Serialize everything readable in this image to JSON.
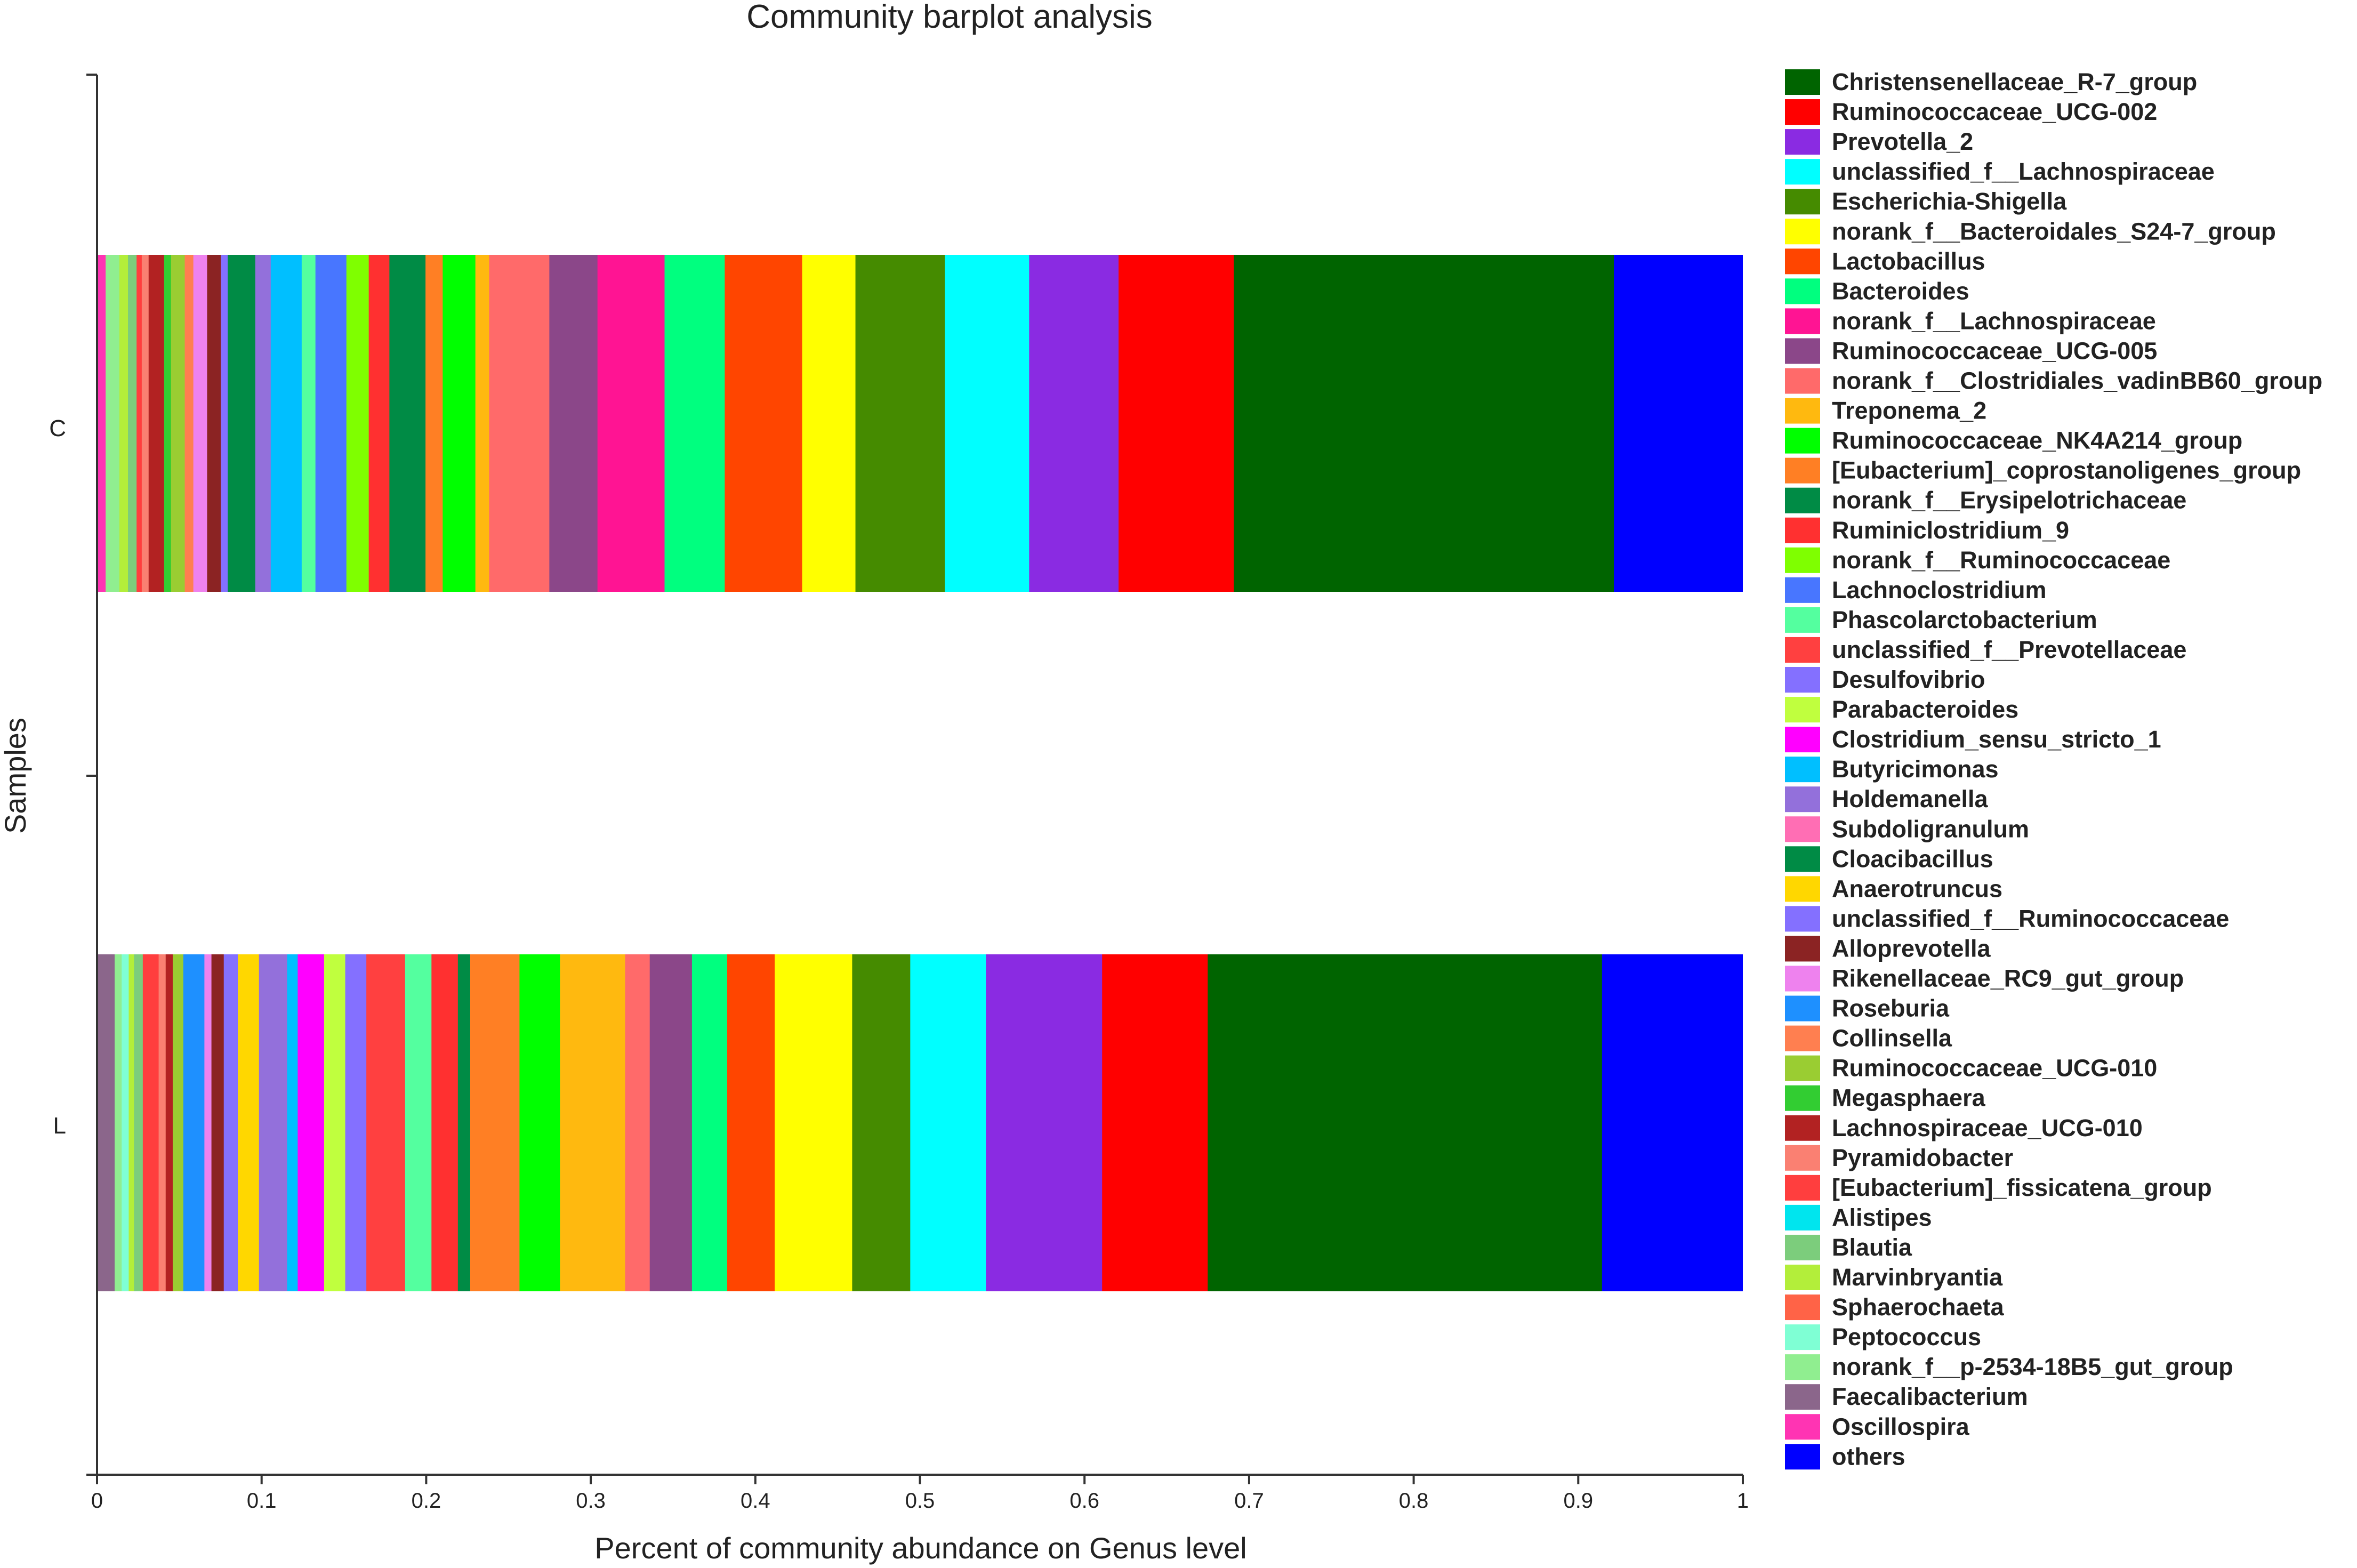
{
  "chart_data": {
    "type": "bar",
    "orientation": "horizontal",
    "stacked": true,
    "title": "Community barplot analysis",
    "xlabel": "Percent of community abundance on Genus level",
    "ylabel": "Samples",
    "xlim": [
      0,
      1
    ],
    "xticks": [
      "0",
      "0.1",
      "0.2",
      "0.3",
      "0.4",
      "0.5",
      "0.6",
      "0.7",
      "0.8",
      "0.9",
      "1"
    ],
    "categories": [
      "C",
      "L"
    ],
    "legend_position": "right",
    "series": [
      {
        "name": "Christensenellaceae_R-7_group",
        "color": "#006400",
        "values": [
          0.221,
          0.224
        ]
      },
      {
        "name": "Ruminococcaceae_UCG-002",
        "color": "#FF0000",
        "values": [
          0.067,
          0.06
        ]
      },
      {
        "name": "Prevotella_2",
        "color": "#8A2BE2",
        "values": [
          0.052,
          0.066
        ]
      },
      {
        "name": "unclassified_f__Lachnospiraceae",
        "color": "#00FFFF",
        "values": [
          0.049,
          0.043
        ]
      },
      {
        "name": "Escherichia-Shigella",
        "color": "#458B00",
        "values": [
          0.052,
          0.033
        ]
      },
      {
        "name": "norank_f__Bacteroidales_S24-7_group",
        "color": "#FFFF00",
        "values": [
          0.031,
          0.044
        ]
      },
      {
        "name": "Lactobacillus",
        "color": "#FF4500",
        "values": [
          0.045,
          0.027
        ]
      },
      {
        "name": "Bacteroides",
        "color": "#00FF7F",
        "values": [
          0.035,
          0.02
        ]
      },
      {
        "name": "norank_f__Lachnospiraceae",
        "color": "#FF1493",
        "values": [
          0.039,
          0.0
        ]
      },
      {
        "name": "Ruminococcaceae_UCG-005",
        "color": "#8B4789",
        "values": [
          0.028,
          0.024
        ]
      },
      {
        "name": "norank_f__Clostridiales_vadinBB60_group",
        "color": "#FF6A6A",
        "values": [
          0.035,
          0.014
        ]
      },
      {
        "name": "Treponema_2",
        "color": "#FFB90F",
        "values": [
          0.008,
          0.037
        ]
      },
      {
        "name": "Ruminococcaceae_NK4A214_group",
        "color": "#00FF00",
        "values": [
          0.019,
          0.023
        ]
      },
      {
        "name": "[Eubacterium]_coprostanoligenes_group",
        "color": "#FF7F24",
        "values": [
          0.01,
          0.028
        ]
      },
      {
        "name": "norank_f__Erysipelotrichaceae",
        "color": "#008B45",
        "values": [
          0.021,
          0.007
        ]
      },
      {
        "name": "Ruminiclostridium_9",
        "color": "#FF3030",
        "values": [
          0.012,
          0.015
        ]
      },
      {
        "name": "norank_f__Ruminococcaceae",
        "color": "#7FFF00",
        "values": [
          0.013,
          0.0
        ]
      },
      {
        "name": "Lachnoclostridium",
        "color": "#4876FF",
        "values": [
          0.018,
          0.0
        ]
      },
      {
        "name": "Phascolarctobacterium",
        "color": "#54FF9F",
        "values": [
          0.008,
          0.015
        ]
      },
      {
        "name": "unclassified_f__Prevotellaceae",
        "color": "#FF4040",
        "values": [
          0.0,
          0.022
        ]
      },
      {
        "name": "Desulfovibrio",
        "color": "#8470FF",
        "values": [
          0.0,
          0.012
        ]
      },
      {
        "name": "Parabacteroides",
        "color": "#C0FF3E",
        "values": [
          0.0,
          0.012
        ]
      },
      {
        "name": "Clostridium_sensu_stricto_1",
        "color": "#FF00FF",
        "values": [
          0.0,
          0.015
        ]
      },
      {
        "name": "Butyricimonas",
        "color": "#00BFFF",
        "values": [
          0.018,
          0.006
        ]
      },
      {
        "name": "Holdemanella",
        "color": "#9370DB",
        "values": [
          0.009,
          0.016
        ]
      },
      {
        "name": "Subdoligranulum",
        "color": "#FF6EB4",
        "values": [
          0.0,
          0.0
        ]
      },
      {
        "name": "Cloacibacillus",
        "color": "#008B45",
        "values": [
          0.016,
          0.0
        ]
      },
      {
        "name": "Anaerotruncus",
        "color": "#FFD700",
        "values": [
          0.0,
          0.012
        ]
      },
      {
        "name": "unclassified_f__Ruminococcaceae",
        "color": "#8470FF",
        "values": [
          0.004,
          0.008
        ]
      },
      {
        "name": "Alloprevotella",
        "color": "#8B2323",
        "values": [
          0.008,
          0.007
        ]
      },
      {
        "name": "Rikenellaceae_RC9_gut_group",
        "color": "#EE82EE",
        "values": [
          0.008,
          0.004
        ]
      },
      {
        "name": "Roseburia",
        "color": "#1E90FF",
        "values": [
          0.0,
          0.012
        ]
      },
      {
        "name": "Collinsella",
        "color": "#FF7F50",
        "values": [
          0.005,
          0.0
        ]
      },
      {
        "name": "Ruminococcaceae_UCG-010",
        "color": "#9ACD32",
        "values": [
          0.008,
          0.006
        ]
      },
      {
        "name": "Megasphaera",
        "color": "#32CD32",
        "values": [
          0.004,
          0.0
        ]
      },
      {
        "name": "Lachnospiraceae_UCG-010",
        "color": "#B22222",
        "values": [
          0.009,
          0.004
        ]
      },
      {
        "name": "Pyramidobacter",
        "color": "#FA8072",
        "values": [
          0.004,
          0.004
        ]
      },
      {
        "name": "[Eubacterium]_fissicatena_group",
        "color": "#FF3E3E",
        "values": [
          0.003,
          0.009
        ]
      },
      {
        "name": "Alistipes",
        "color": "#00E5EE",
        "values": [
          0.0,
          0.0
        ]
      },
      {
        "name": "Blautia",
        "color": "#7CCD7C",
        "values": [
          0.005,
          0.005
        ]
      },
      {
        "name": "Marvinbryantia",
        "color": "#B3EE3A",
        "values": [
          0.005,
          0.003
        ]
      },
      {
        "name": "Sphaerochaeta",
        "color": "#FF6347",
        "values": [
          0.0,
          0.0
        ]
      },
      {
        "name": "Peptococcus",
        "color": "#7FFFD4",
        "values": [
          0.0,
          0.004
        ]
      },
      {
        "name": "norank_f__p-2534-18B5_gut_group",
        "color": "#90EE90",
        "values": [
          0.008,
          0.004
        ]
      },
      {
        "name": "Faecalibacterium",
        "color": "#8B668B",
        "values": [
          0.0,
          0.01
        ]
      },
      {
        "name": "Oscillospira",
        "color": "#FF34B3",
        "values": [
          0.005,
          0.0
        ]
      },
      {
        "name": "others",
        "color": "#0000FF",
        "values": [
          0.075,
          0.08
        ]
      }
    ]
  }
}
